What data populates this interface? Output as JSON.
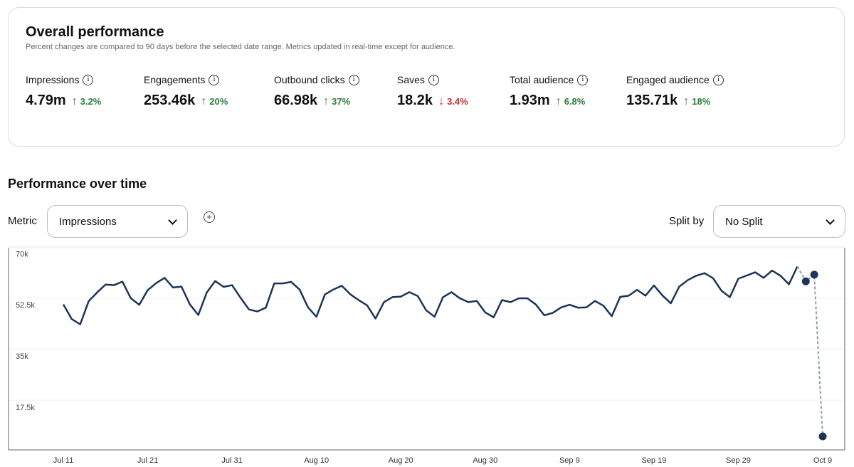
{
  "overview": {
    "title": "Overall performance",
    "subtitle": "Percent changes are compared to 90 days before the selected date range. Metrics updated in real-time except for audience.",
    "metrics": [
      {
        "label": "Impressions",
        "value": "4.79m",
        "change": "3.2%",
        "direction": "up"
      },
      {
        "label": "Engagements",
        "value": "253.46k",
        "change": "20%",
        "direction": "up"
      },
      {
        "label": "Outbound clicks",
        "value": "66.98k",
        "change": "37%",
        "direction": "up"
      },
      {
        "label": "Saves",
        "value": "18.2k",
        "change": "3.4%",
        "direction": "down"
      },
      {
        "label": "Total audience",
        "value": "1.93m",
        "change": "6.8%",
        "direction": "up"
      },
      {
        "label": "Engaged audience",
        "value": "135.71k",
        "change": "18%",
        "direction": "up"
      }
    ],
    "info_icon": "i",
    "arrow_up": "↑",
    "arrow_down": "↓"
  },
  "performance": {
    "title": "Performance over time",
    "metric_label": "Metric",
    "metric_value": "Impressions",
    "split_label": "Split by",
    "split_value": "No Split",
    "add_icon": "+"
  },
  "colors": {
    "line": "#1c3557",
    "dashed": "#8e9bb0",
    "up": "#2f7d3b",
    "down": "#c0302b"
  },
  "chart_data": {
    "type": "line",
    "title": "Performance over time",
    "ylabel": "Impressions",
    "ylim": [
      0,
      70000
    ],
    "yticks": [
      "17.5k",
      "35k",
      "52.5k",
      "70k"
    ],
    "ytick_values": [
      17.5,
      35,
      52.5,
      70
    ],
    "xticks": [
      "Jul 11",
      "Jul 21",
      "Jul 31",
      "Aug 10",
      "Aug 20",
      "Aug 30",
      "Sep 9",
      "Sep 19",
      "Sep 29",
      "Oct 9"
    ],
    "xtick_days": [
      0,
      10,
      20,
      30,
      40,
      50,
      60,
      70,
      80,
      90
    ],
    "x_start": "Jul 11",
    "units": "thousands",
    "solid_until_day": 87,
    "values": [
      50.2,
      45.2,
      43.4,
      51.3,
      54.3,
      57.0,
      56.8,
      58.0,
      52.3,
      50.1,
      55.1,
      57.5,
      59.3,
      56.0,
      56.3,
      50.2,
      46.6,
      54.3,
      58.2,
      56.2,
      56.8,
      52.5,
      48.5,
      47.8,
      49.1,
      57.4,
      57.4,
      57.9,
      55.3,
      49.2,
      46.0,
      53.6,
      55.3,
      56.6,
      53.7,
      51.7,
      49.9,
      45.4,
      51.0,
      52.7,
      52.9,
      54.4,
      53.1,
      48.2,
      46.0,
      52.7,
      54.4,
      52.3,
      51.0,
      51.4,
      47.5,
      45.8,
      51.7,
      51.0,
      52.3,
      52.3,
      50.2,
      46.5,
      47.3,
      49.2,
      50.1,
      49.1,
      49.2,
      51.4,
      49.8,
      46.2,
      52.8,
      53.2,
      55.2,
      53.2,
      56.7,
      53.3,
      50.6,
      56.3,
      58.5,
      60.0,
      60.9,
      59.2,
      54.9,
      52.7,
      59.0,
      60.1,
      61.2,
      59.3,
      61.8,
      60.0,
      57.1,
      63.2,
      58.1,
      60.4,
      5.1
    ]
  }
}
